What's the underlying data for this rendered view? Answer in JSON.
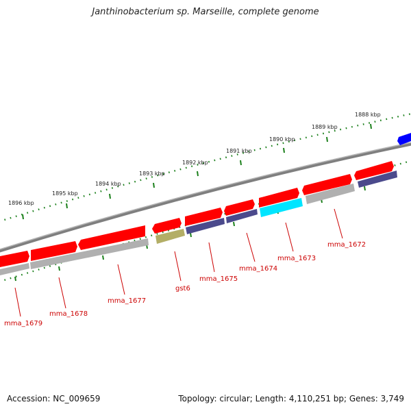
{
  "title": "Janthinobacterium sp. Marseille, complete genome",
  "footer": {
    "accession": "Accession: NC_009659",
    "stats": "Topology: circular; Length: 4,110,251 bp; Genes: 3,749"
  },
  "colors": {
    "backbone": "#7f7f7f",
    "cds_forward": "#ff0000",
    "cds_reverse_shadow": "#b0b0b0",
    "category_navy": "#4b4a8c",
    "category_cyan": "#00e5ff",
    "category_olive": "#b3ae66",
    "other_feature": "#0000ff",
    "ticks": "#1a7f1a",
    "labels": "#cc0000"
  },
  "scale_labels": [
    "1896 kbp",
    "1895 kbp",
    "1894 kbp",
    "1893 kbp",
    "1892 kbp",
    "1891 kbp",
    "1890 kbp",
    "1889 kbp",
    "1888 kbp"
  ],
  "gene_labels": [
    "mma_1679",
    "mma_1678",
    "mma_1677",
    "gst6",
    "mma_1675",
    "mma_1674",
    "mma_1673",
    "mma_1672"
  ]
}
